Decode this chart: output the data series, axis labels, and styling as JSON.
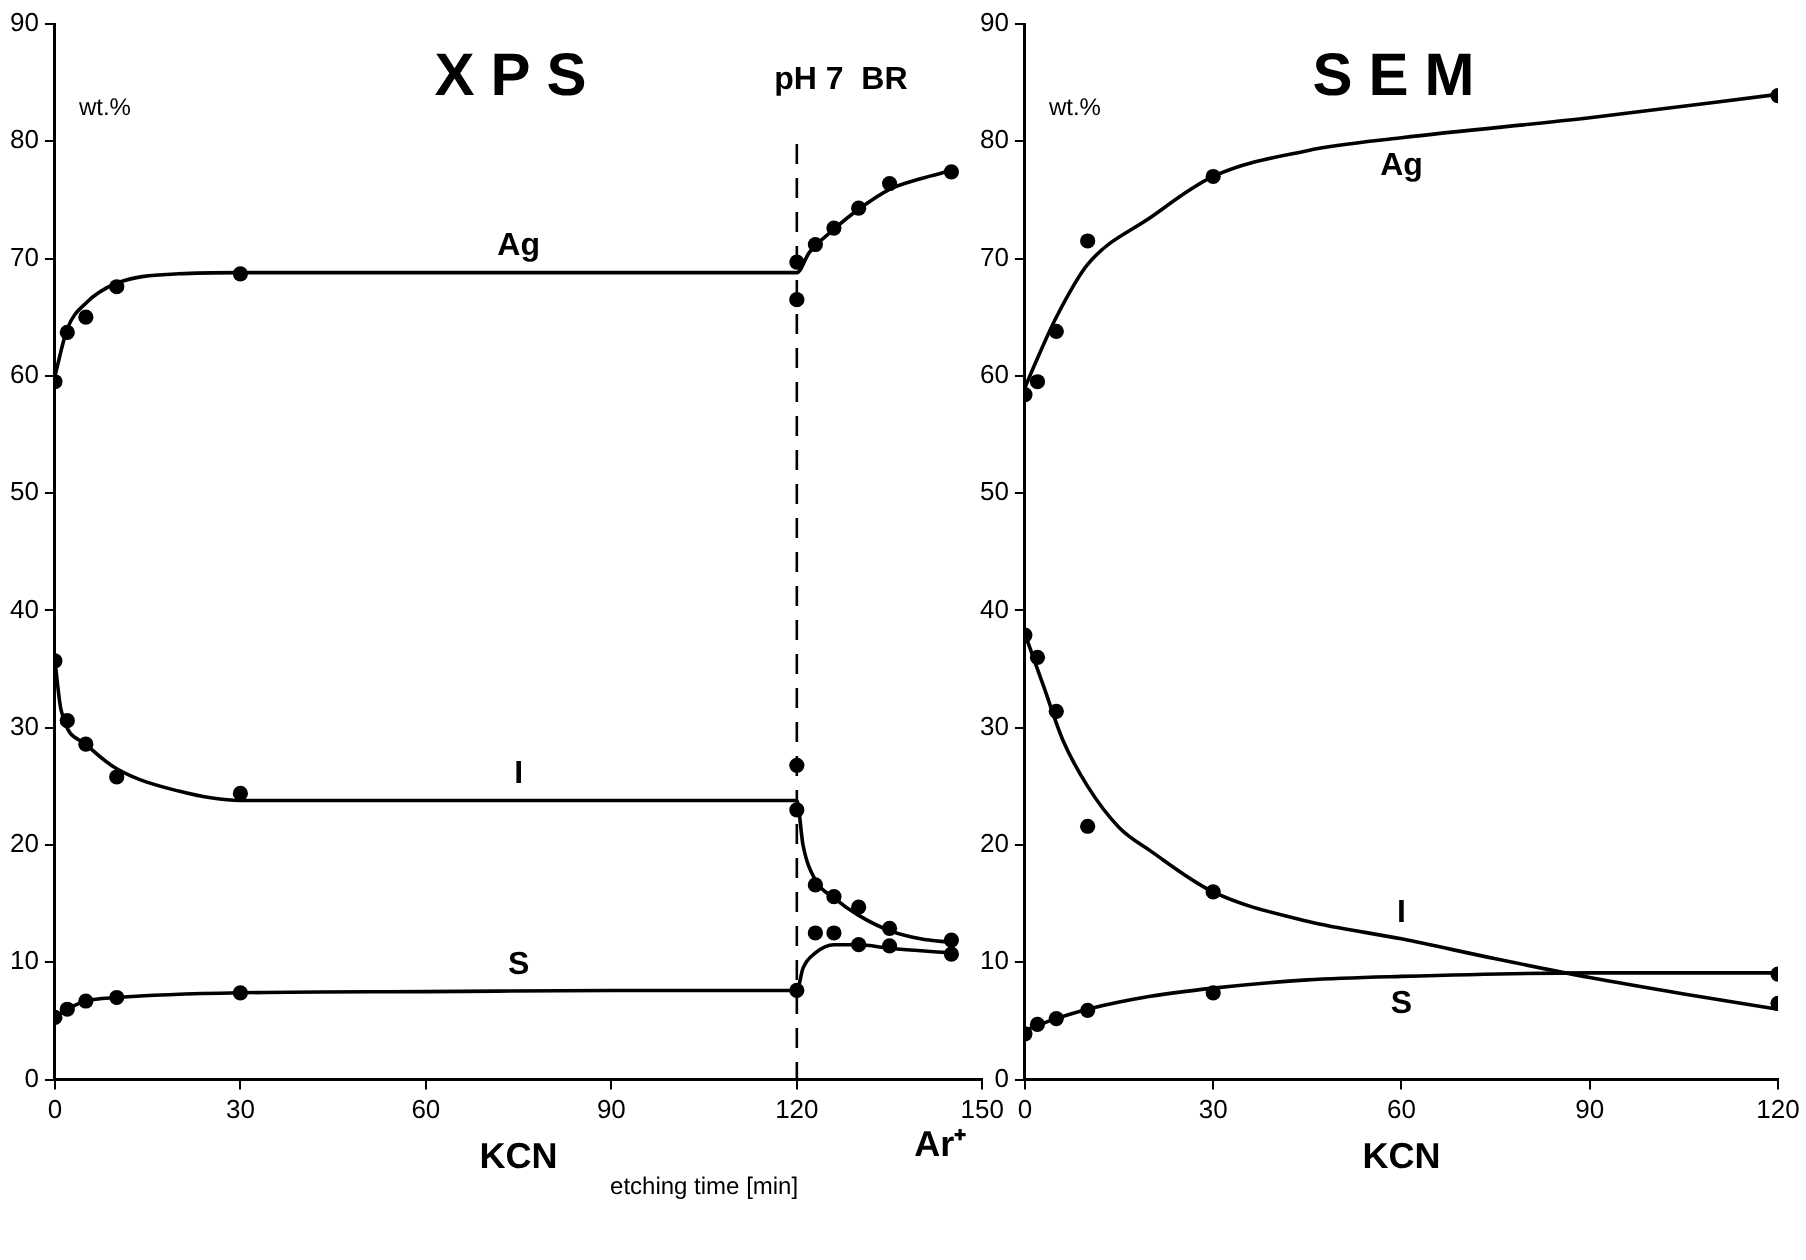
{
  "chart_data": [
    {
      "type": "line",
      "title": "XPS",
      "ylabel": "wt.%",
      "xlabel": "KCN",
      "xlim": [
        0,
        150
      ],
      "xticks": [
        0,
        30,
        60,
        90,
        120,
        150
      ],
      "ylim": [
        0,
        90
      ],
      "yticks": [
        0,
        10,
        20,
        30,
        40,
        50,
        60,
        70,
        80,
        90
      ],
      "grid": false,
      "legend": false,
      "ref_lines": [
        {
          "axis": "x",
          "value": 120,
          "label": "pH 7  BR",
          "line_style": "dashed"
        }
      ],
      "annotations": [
        "Ar⁺",
        "etching time [min]"
      ],
      "series": [
        {
          "name": "Ag",
          "type": "line",
          "marker": "none",
          "color": "#000000",
          "x": [
            0,
            2,
            5,
            10,
            20,
            30,
            60,
            90,
            118,
            120,
            122,
            126,
            130,
            135,
            140,
            145
          ],
          "values": [
            60,
            64,
            66.2,
            67.9,
            68.7,
            68.8,
            68.8,
            68.8,
            68.8,
            68.8,
            70.5,
            72.5,
            74.2,
            75.9,
            76.8,
            77.5
          ]
        },
        {
          "type": "scatter",
          "marker": "circle",
          "color": "#000000",
          "x": [
            0,
            2,
            5,
            10,
            30,
            120,
            120,
            123,
            126,
            130,
            135,
            145
          ],
          "values": [
            59.5,
            63.7,
            65,
            67.6,
            68.7,
            69.7,
            66.5,
            71.2,
            72.6,
            74.3,
            76.4,
            77.4
          ]
        },
        {
          "name": "I",
          "type": "line",
          "marker": "none",
          "color": "#000000",
          "x": [
            0,
            1,
            5,
            10,
            20,
            30,
            60,
            90,
            120,
            121,
            123,
            126,
            130,
            135,
            140,
            145
          ],
          "values": [
            35.7,
            31.5,
            28.6,
            26.5,
            24.6,
            23.8,
            23.8,
            23.8,
            23.8,
            20,
            17,
            15.5,
            14,
            12.7,
            12,
            11.7
          ]
        },
        {
          "type": "scatter",
          "marker": "circle",
          "color": "#000000",
          "x": [
            0,
            2,
            5,
            10,
            30,
            120,
            120,
            123,
            126,
            130,
            135,
            145
          ],
          "values": [
            35.7,
            30.6,
            28.6,
            25.8,
            24.4,
            26.8,
            23,
            16.6,
            15.6,
            14.7,
            12.9,
            11.9
          ]
        },
        {
          "name": "S",
          "type": "line",
          "marker": "none",
          "color": "#000000",
          "x": [
            0,
            2,
            5,
            10,
            30,
            60,
            90,
            120,
            121,
            123,
            126,
            130,
            135,
            145
          ],
          "values": [
            5.3,
            6,
            6.7,
            7,
            7.4,
            7.5,
            7.6,
            7.6,
            9.5,
            10.8,
            11.5,
            11.5,
            11.2,
            10.8
          ]
        },
        {
          "type": "scatter",
          "marker": "circle",
          "color": "#000000",
          "x": [
            0,
            2,
            5,
            10,
            30,
            120,
            123,
            126,
            130,
            135,
            145
          ],
          "values": [
            5.3,
            6,
            6.7,
            7,
            7.4,
            7.6,
            12.5,
            12.5,
            11.5,
            11.4,
            10.7
          ]
        }
      ]
    },
    {
      "type": "line",
      "title": "SEM",
      "ylabel": "wt.%",
      "xlabel": "KCN",
      "xlim": [
        0,
        120
      ],
      "xticks": [
        0,
        30,
        60,
        90,
        120
      ],
      "ylim": [
        0,
        90
      ],
      "yticks": [
        0,
        10,
        20,
        30,
        40,
        50,
        60,
        70,
        80,
        90
      ],
      "grid": false,
      "legend": false,
      "series": [
        {
          "name": "Ag",
          "type": "line",
          "marker": "none",
          "color": "#000000",
          "x": [
            0,
            2,
            5,
            10,
            20,
            30,
            45,
            60,
            90,
            120
          ],
          "values": [
            59,
            61.5,
            65,
            69.5,
            73.5,
            77,
            79.2,
            80.3,
            82,
            84
          ]
        },
        {
          "type": "scatter",
          "marker": "circle",
          "color": "#000000",
          "x": [
            0,
            2,
            5,
            10,
            30,
            120
          ],
          "values": [
            58.4,
            59.5,
            63.8,
            71.5,
            77,
            83.9
          ]
        },
        {
          "name": "I",
          "type": "line",
          "marker": "none",
          "color": "#000000",
          "x": [
            0,
            3,
            6,
            10,
            15,
            20,
            30,
            45,
            60,
            75,
            90,
            105,
            120
          ],
          "values": [
            38,
            33.5,
            29,
            25,
            21.5,
            19.5,
            16,
            13.5,
            12,
            10.3,
            8.7,
            7.3,
            6
          ]
        },
        {
          "type": "scatter",
          "marker": "circle",
          "color": "#000000",
          "x": [
            0,
            2,
            5,
            10,
            30,
            120
          ],
          "values": [
            37.9,
            36,
            31.4,
            21.6,
            16,
            6.5
          ]
        },
        {
          "name": "S",
          "type": "line",
          "marker": "none",
          "color": "#000000",
          "x": [
            0,
            5,
            10,
            20,
            30,
            45,
            60,
            90,
            120
          ],
          "values": [
            4.2,
            5.2,
            6,
            7.1,
            7.8,
            8.5,
            8.8,
            9.1,
            9.1
          ]
        },
        {
          "type": "scatter",
          "marker": "circle",
          "color": "#000000",
          "x": [
            0,
            2,
            5,
            10,
            30,
            120
          ],
          "values": [
            3.9,
            4.7,
            5.2,
            5.9,
            7.4,
            9
          ]
        }
      ]
    }
  ]
}
